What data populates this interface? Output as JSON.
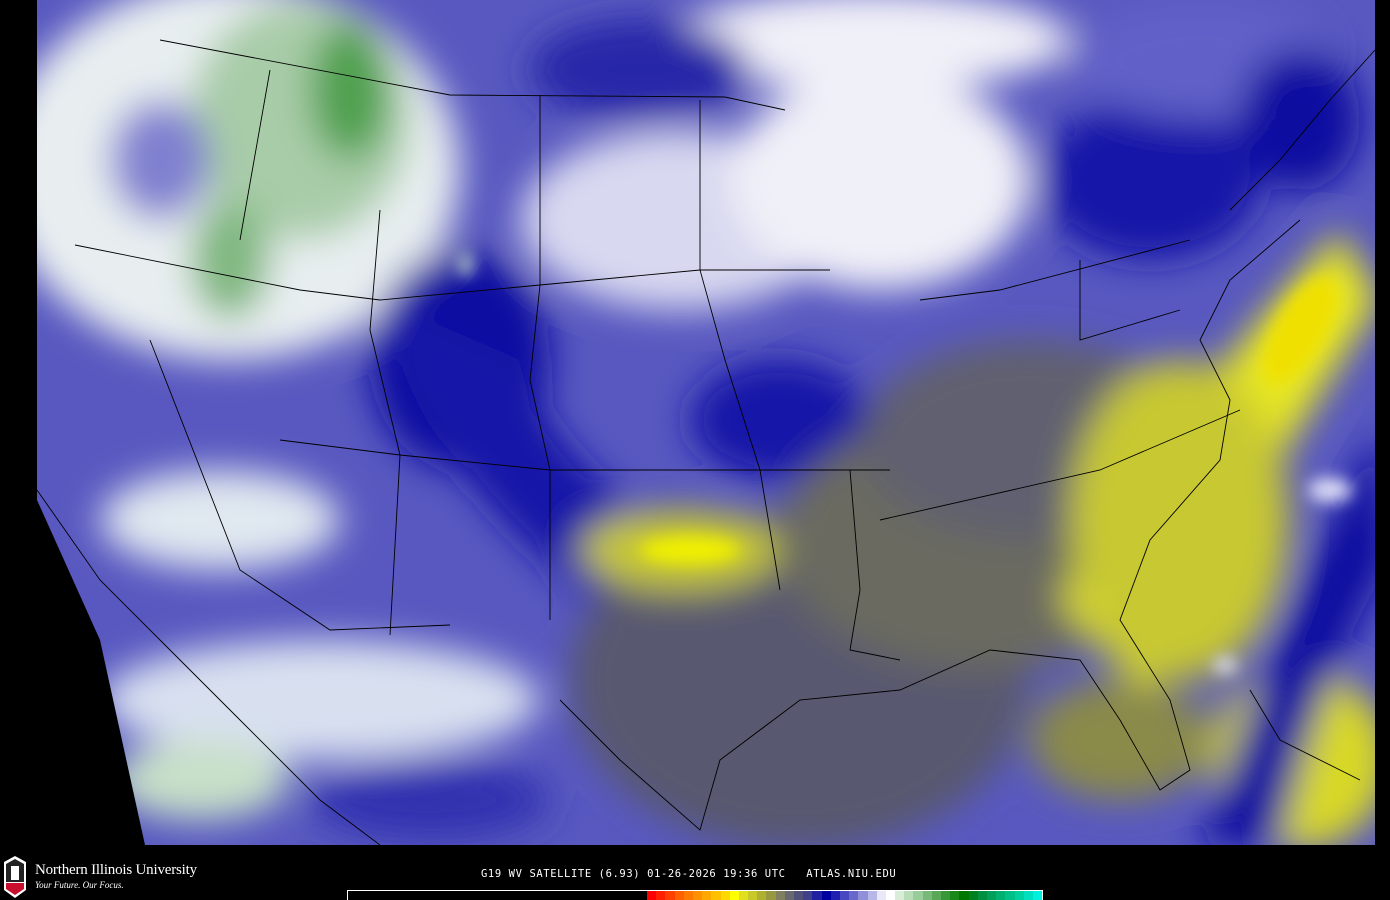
{
  "map": {
    "caption": "G19 WV SATELLITE (6.93) 01-26-2026 19:36 UTC   ATLAS.NIU.EDU",
    "product": "water vapor satellite imagery",
    "region": "continental United States"
  },
  "logo": {
    "name": "Northern Illinois University",
    "tagline": "Your Future. Our Focus.",
    "mark": "NIU"
  },
  "colorbar": {
    "colors": [
      "#ff0000",
      "#ff2000",
      "#ff4000",
      "#ff6000",
      "#ff7a00",
      "#ff9000",
      "#ffa800",
      "#ffc000",
      "#ffd800",
      "#ffff00",
      "#e0e020",
      "#c8c828",
      "#b0b030",
      "#989840",
      "#808060",
      "#686870",
      "#505078",
      "#404088",
      "#2020a0",
      "#0000a0",
      "#2020b0",
      "#4848c0",
      "#6868c8",
      "#9090d8",
      "#b8b8e8",
      "#e8e8f8",
      "#ffffff",
      "#d8ecd8",
      "#b8dcb8",
      "#98cc98",
      "#78b878",
      "#58a858",
      "#389838",
      "#188818",
      "#007800",
      "#008020",
      "#009040",
      "#00a058",
      "#00b070",
      "#00c088",
      "#00d0a0",
      "#00e0c0",
      "#00f0e0"
    ]
  }
}
